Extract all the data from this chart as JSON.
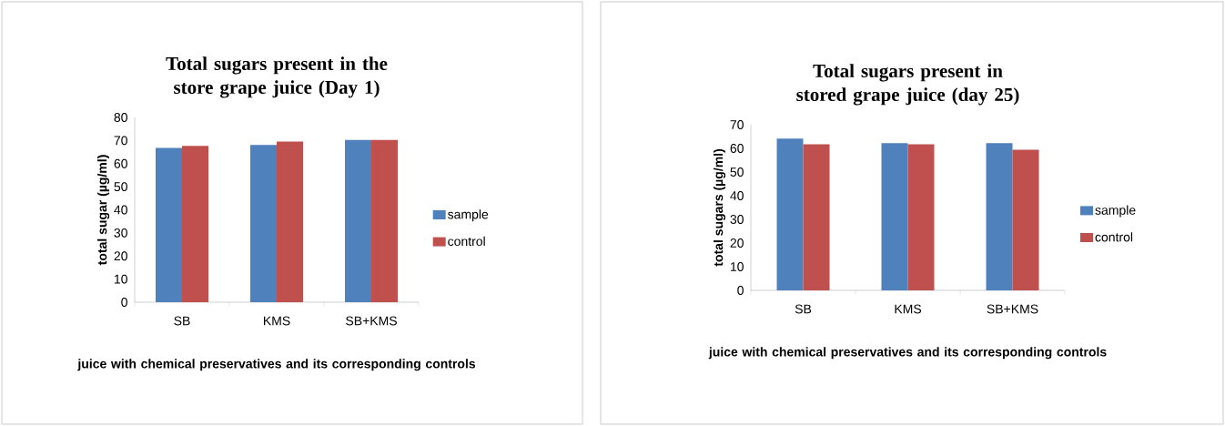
{
  "chart_data": [
    {
      "type": "bar",
      "title": "Total sugars present in the store grape juice (Day 1)",
      "xlabel": "juice with chemical preservatives and its corresponding controls",
      "ylabel": "total sugar (µg/ml)",
      "categories": [
        "SB",
        "KMS",
        "SB+KMS"
      ],
      "series": [
        {
          "name": "sample",
          "color": "#4f81bd",
          "values": [
            66.8,
            68.1,
            70.2
          ]
        },
        {
          "name": "control",
          "color": "#c0504d",
          "values": [
            67.7,
            69.6,
            70.2
          ]
        }
      ],
      "ylim": [
        0,
        80
      ],
      "yticks": [
        0,
        10,
        20,
        30,
        40,
        50,
        60,
        70,
        80
      ],
      "legend": "right"
    },
    {
      "type": "bar",
      "title": "Total sugars present in stored grape juice (day 25)",
      "xlabel": "juice with chemical preservatives and its corresponding controls",
      "ylabel": "total sugars (µg/ml)",
      "categories": [
        "SB",
        "KMS",
        "SB+KMS"
      ],
      "series": [
        {
          "name": "sample",
          "color": "#4f81bd",
          "values": [
            64.1,
            62.2,
            62.2
          ]
        },
        {
          "name": "control",
          "color": "#c0504d",
          "values": [
            61.7,
            61.7,
            59.4
          ]
        }
      ],
      "ylim": [
        0,
        70
      ],
      "yticks": [
        0,
        10,
        20,
        30,
        40,
        50,
        60,
        70
      ],
      "legend": "right"
    }
  ]
}
